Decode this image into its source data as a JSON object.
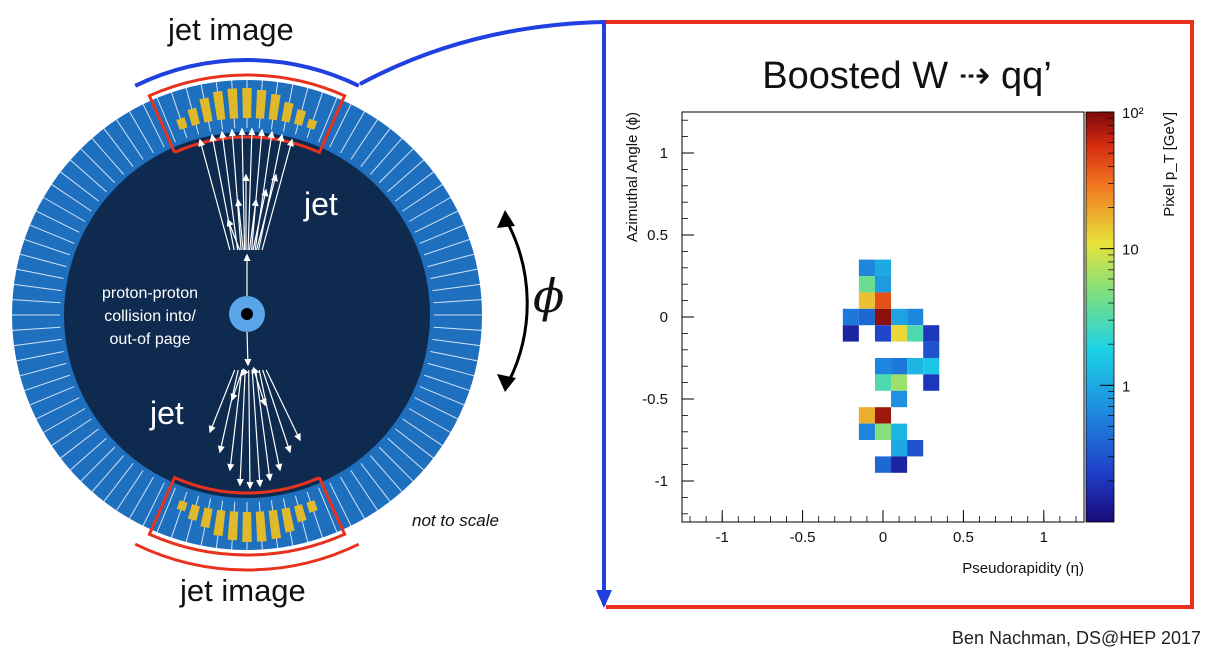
{
  "detector": {
    "label_top": "jet image",
    "label_bottom": "jet image",
    "jet_top": "jet",
    "jet_bottom": "jet",
    "collision_line1": "proton-proton",
    "collision_line2": "collision into/",
    "collision_line3": "out-of page",
    "phi_symbol": "ϕ",
    "note": "not to scale"
  },
  "colors": {
    "calorimeter": "#1f6fbf",
    "inner": "#0e2a4f",
    "cell_energy": "#e0b92a",
    "highlight": "#e8321e",
    "connector": "#2040e0",
    "core": "#5aa5ea"
  },
  "chart_data": {
    "type": "heatmap",
    "title": "Boosted W ⇢ qq’",
    "xlabel": "Pseudorapidity (η)",
    "ylabel": "Azimuthal Angle (ϕ)",
    "colorbar_label": "Pixel p_T [GeV]",
    "colorbar_scale": "log",
    "colorbar_range": [
      0.1,
      100
    ],
    "colorbar_ticks": [
      "1",
      "10",
      "10²"
    ],
    "xlim": [
      -1.25,
      1.25
    ],
    "ylim": [
      -1.25,
      1.25
    ],
    "xticks": [
      "-1",
      "-0.5",
      "0",
      "0.5",
      "1"
    ],
    "yticks": [
      "-1",
      "-0.5",
      "0",
      "0.5",
      "1"
    ],
    "cell_size": 0.1,
    "pixels": [
      {
        "eta": -0.1,
        "phi": 0.3,
        "pt": 0.6
      },
      {
        "eta": 0.0,
        "phi": 0.3,
        "pt": 1.0
      },
      {
        "eta": -0.1,
        "phi": 0.2,
        "pt": 4.0
      },
      {
        "eta": 0.0,
        "phi": 0.2,
        "pt": 0.8
      },
      {
        "eta": -0.1,
        "phi": 0.1,
        "pt": 15.0
      },
      {
        "eta": 0.0,
        "phi": 0.1,
        "pt": 40.0
      },
      {
        "eta": -0.2,
        "phi": 0.0,
        "pt": 0.5
      },
      {
        "eta": -0.1,
        "phi": 0.0,
        "pt": 0.4
      },
      {
        "eta": 0.0,
        "phi": 0.0,
        "pt": 90.0
      },
      {
        "eta": 0.1,
        "phi": 0.0,
        "pt": 0.9
      },
      {
        "eta": 0.2,
        "phi": 0.0,
        "pt": 0.6
      },
      {
        "eta": -0.2,
        "phi": -0.1,
        "pt": 0.15
      },
      {
        "eta": 0.0,
        "phi": -0.1,
        "pt": 0.25
      },
      {
        "eta": 0.1,
        "phi": -0.1,
        "pt": 12.0
      },
      {
        "eta": 0.2,
        "phi": -0.1,
        "pt": 3.0
      },
      {
        "eta": 0.3,
        "phi": -0.1,
        "pt": 0.2
      },
      {
        "eta": 0.3,
        "phi": -0.2,
        "pt": 0.3
      },
      {
        "eta": 0.0,
        "phi": -0.3,
        "pt": 0.6
      },
      {
        "eta": 0.1,
        "phi": -0.3,
        "pt": 0.5
      },
      {
        "eta": 0.2,
        "phi": -0.3,
        "pt": 1.2
      },
      {
        "eta": 0.3,
        "phi": -0.3,
        "pt": 1.5
      },
      {
        "eta": 0.0,
        "phi": -0.4,
        "pt": 3.0
      },
      {
        "eta": 0.1,
        "phi": -0.4,
        "pt": 6.0
      },
      {
        "eta": 0.3,
        "phi": -0.4,
        "pt": 0.2
      },
      {
        "eta": 0.1,
        "phi": -0.5,
        "pt": 0.7
      },
      {
        "eta": -0.1,
        "phi": -0.6,
        "pt": 18.0
      },
      {
        "eta": 0.0,
        "phi": -0.6,
        "pt": 80.0
      },
      {
        "eta": -0.1,
        "phi": -0.7,
        "pt": 0.6
      },
      {
        "eta": 0.0,
        "phi": -0.7,
        "pt": 5.0
      },
      {
        "eta": 0.1,
        "phi": -0.7,
        "pt": 1.2
      },
      {
        "eta": 0.1,
        "phi": -0.8,
        "pt": 1.0
      },
      {
        "eta": 0.2,
        "phi": -0.8,
        "pt": 0.3
      },
      {
        "eta": 0.0,
        "phi": -0.9,
        "pt": 0.4
      },
      {
        "eta": 0.1,
        "phi": -0.9,
        "pt": 0.15
      }
    ]
  },
  "footer": {
    "credit": "Ben Nachman, DS@HEP 2017"
  }
}
